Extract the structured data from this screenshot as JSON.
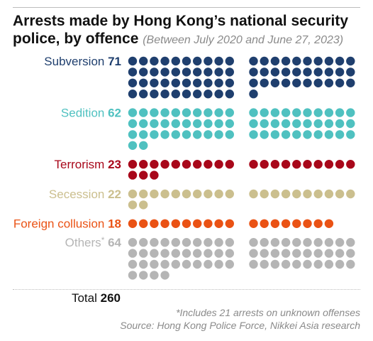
{
  "title": {
    "main": "Arrests made by Hong Kong’s national security police, by offence",
    "period": "(Between July 2020 and June 27, 2023)"
  },
  "chart_data": {
    "type": "dot-matrix",
    "unit": "one dot = one arrest",
    "categories": [
      {
        "name": "Subversion",
        "value": 71,
        "color": "#1f3f6e"
      },
      {
        "name": "Sedition",
        "value": 62,
        "color": "#4fc1c0"
      },
      {
        "name": "Terrorism",
        "value": 23,
        "color": "#a8071a"
      },
      {
        "name": "Secession",
        "value": 22,
        "color": "#cbbf8e"
      },
      {
        "name": "Foreign collusion",
        "value": 18,
        "color": "#ea5214"
      },
      {
        "name": "Others",
        "value": 64,
        "color": "#b5b5b5",
        "marker": "*"
      }
    ],
    "total_label": "Total",
    "total": 260
  },
  "notes": {
    "footnote": "*Includes 21 arrests on unknown offenses",
    "source": "Source: Hong Kong Police Force, Nikkei Asia research"
  }
}
